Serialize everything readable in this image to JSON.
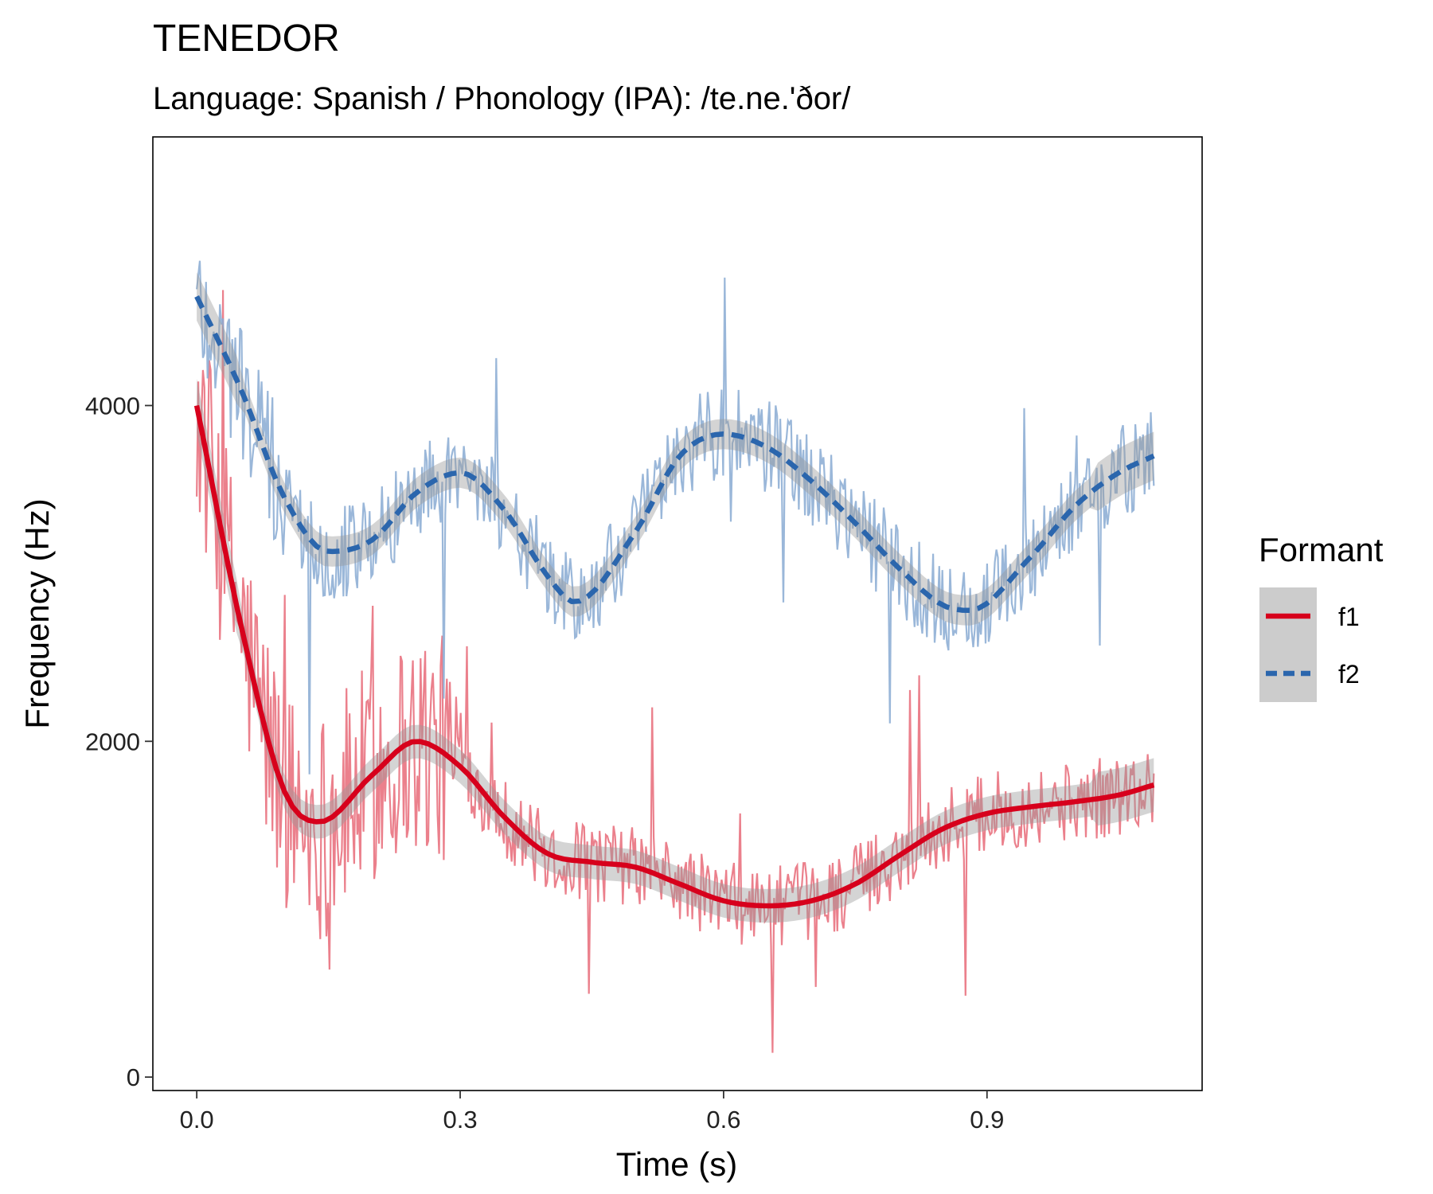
{
  "chart_data": {
    "type": "line",
    "title": "TENEDOR",
    "subtitle": "Language: Spanish / Phonology (IPA): /te.ne.'ðor/",
    "xlabel": "Time (s)",
    "ylabel": "Frequency (Hz)",
    "xlim": [
      -0.05,
      1.145
    ],
    "ylim": [
      -80,
      5600
    ],
    "x_ticks": [
      {
        "value": 0.0,
        "label": "0.0"
      },
      {
        "value": 0.3,
        "label": "0.3"
      },
      {
        "value": 0.6,
        "label": "0.6"
      },
      {
        "value": 0.9,
        "label": "0.9"
      }
    ],
    "y_ticks": [
      {
        "value": 0,
        "label": "0"
      },
      {
        "value": 2000,
        "label": "2000"
      },
      {
        "value": 4000,
        "label": "4000"
      }
    ],
    "grid": false,
    "legend": {
      "title": "Formant",
      "position": "right"
    },
    "series": [
      {
        "name": "f1",
        "color": "#d7001c",
        "raw_color": "#e86a78",
        "line_style": "solid",
        "smooth_x": [
          0.0,
          0.05,
          0.1,
          0.14,
          0.2,
          0.25,
          0.3,
          0.35,
          0.4,
          0.45,
          0.5,
          0.55,
          0.6,
          0.65,
          0.7,
          0.75,
          0.8,
          0.85,
          0.9,
          0.95,
          1.0,
          1.05,
          1.09
        ],
        "smooth_y": [
          4000,
          2700,
          1700,
          1520,
          1800,
          2000,
          1850,
          1550,
          1330,
          1280,
          1250,
          1150,
          1050,
          1020,
          1050,
          1150,
          1320,
          1480,
          1570,
          1610,
          1640,
          1680,
          1740
        ],
        "band_halfwidth": 100
      },
      {
        "name": "f2",
        "color": "#2b66ad",
        "raw_color": "#88aad2",
        "line_style": "dashed",
        "smooth_x": [
          0.0,
          0.05,
          0.1,
          0.15,
          0.2,
          0.25,
          0.3,
          0.35,
          0.4,
          0.43,
          0.5,
          0.55,
          0.6,
          0.65,
          0.7,
          0.75,
          0.8,
          0.85,
          0.88,
          0.95,
          1.0,
          1.05,
          1.09
        ],
        "smooth_y": [
          4650,
          4100,
          3450,
          3130,
          3200,
          3480,
          3600,
          3380,
          2980,
          2830,
          3250,
          3700,
          3830,
          3750,
          3550,
          3300,
          3030,
          2810,
          2780,
          3100,
          3400,
          3600,
          3700
        ],
        "band_halfwidth": 90
      }
    ]
  }
}
